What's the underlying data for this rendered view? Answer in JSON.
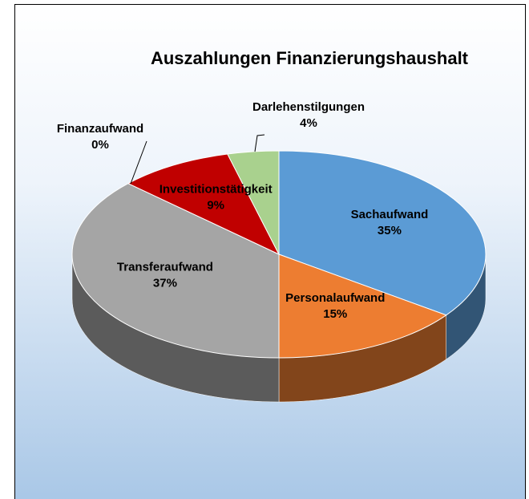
{
  "chart_data": {
    "type": "pie",
    "title": "Auszahlungen Finanzierungshaushalt",
    "categories": [
      "Sachaufwand",
      "Personalaufwand",
      "Transferaufwand",
      "Finanzaufwand",
      "Investitionstätigkeit",
      "Darlehenstilgungen"
    ],
    "values": [
      35,
      15,
      37,
      0,
      9,
      4
    ],
    "value_labels": [
      "35%",
      "15%",
      "37%",
      "0%",
      "9%",
      "4%"
    ],
    "colors": [
      "#5b9bd5",
      "#ed7d31",
      "#a5a5a5",
      "#ffc000",
      "#c00000",
      "#a9d18e"
    ]
  }
}
